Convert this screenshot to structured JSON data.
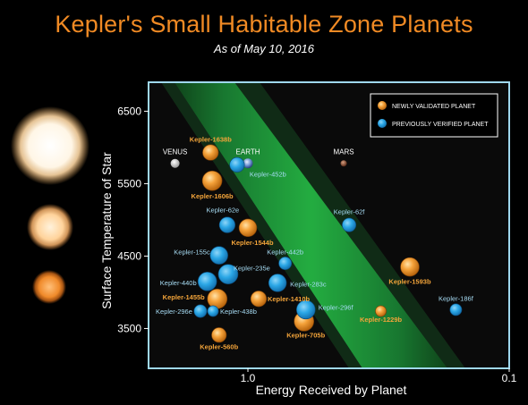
{
  "header": {
    "title": "Kepler's Small Habitable Zone Planets",
    "subtitle": "As of May 10, 2016"
  },
  "colors": {
    "newly_validated": "#f39a2c",
    "previously_verified": "#2ba7e6",
    "habitable_zone": "#1f9e3a",
    "frame": "#9fd8ee"
  },
  "chart_data": {
    "type": "scatter",
    "xlabel": "Energy Received by Planet",
    "ylabel": "Surface Temperature of Star",
    "x_scale": "log-reversed",
    "xlim": [
      2.4,
      0.1
    ],
    "ylim": [
      2950,
      6900
    ],
    "x_ticks": [
      {
        "value": 1.0,
        "label": "1.0"
      },
      {
        "value": 0.1,
        "label": "0.1"
      }
    ],
    "y_ticks": [
      3500,
      4500,
      5500,
      6500
    ],
    "grid": false,
    "legend": {
      "placement": "top-right",
      "entries": [
        {
          "key": "new",
          "label": "NEWLY VALIDATED PLANET"
        },
        {
          "key": "old",
          "label": "PREVIOUSLY VERIFIED PLANET"
        }
      ]
    },
    "solar_system": [
      {
        "name": "VENUS",
        "x": 1.9,
        "y": 5780
      },
      {
        "name": "EARTH",
        "x": 1.0,
        "y": 5780
      },
      {
        "name": "MARS",
        "x": 0.43,
        "y": 5780
      }
    ],
    "planets": [
      {
        "name": "Kepler-1638b",
        "status": "new",
        "x": 1.39,
        "y": 5930,
        "size": 1.6
      },
      {
        "name": "Kepler-452b",
        "status": "old",
        "x": 1.1,
        "y": 5760,
        "size": 1.5
      },
      {
        "name": "Kepler-1606b",
        "status": "new",
        "x": 1.37,
        "y": 5540,
        "size": 2.0
      },
      {
        "name": "Kepler-62e",
        "status": "old",
        "x": 1.2,
        "y": 4930,
        "size": 1.6
      },
      {
        "name": "Kepler-1544b",
        "status": "new",
        "x": 1.0,
        "y": 4890,
        "size": 1.8
      },
      {
        "name": "Kepler-62f",
        "status": "old",
        "x": 0.41,
        "y": 4930,
        "size": 1.4
      },
      {
        "name": "Kepler-155c",
        "status": "old",
        "x": 1.29,
        "y": 4510,
        "size": 1.8
      },
      {
        "name": "Kepler-442b",
        "status": "old",
        "x": 0.72,
        "y": 4400,
        "size": 1.3
      },
      {
        "name": "Kepler-1593b",
        "status": "new",
        "x": 0.24,
        "y": 4350,
        "size": 1.9
      },
      {
        "name": "Kepler-235e",
        "status": "old",
        "x": 1.19,
        "y": 4250,
        "size": 2.0
      },
      {
        "name": "Kepler-440b",
        "status": "old",
        "x": 1.43,
        "y": 4150,
        "size": 1.9
      },
      {
        "name": "Kepler-283c",
        "status": "old",
        "x": 0.77,
        "y": 4130,
        "size": 1.8
      },
      {
        "name": "Kepler-1455b",
        "status": "new",
        "x": 1.31,
        "y": 3910,
        "size": 2.0
      },
      {
        "name": "Kepler-1410b",
        "status": "new",
        "x": 0.91,
        "y": 3910,
        "size": 1.6
      },
      {
        "name": "Kepler-296f",
        "status": "old",
        "x": 0.6,
        "y": 3760,
        "size": 1.9
      },
      {
        "name": "Kepler-186f",
        "status": "old",
        "x": 0.16,
        "y": 3760,
        "size": 1.2
      },
      {
        "name": "Kepler-296e",
        "status": "old",
        "x": 1.52,
        "y": 3740,
        "size": 1.3
      },
      {
        "name": "Kepler-438b",
        "status": "old",
        "x": 1.36,
        "y": 3740,
        "size": 1.1
      },
      {
        "name": "Kepler-1229b",
        "status": "new",
        "x": 0.31,
        "y": 3740,
        "size": 1.1
      },
      {
        "name": "Kepler-705b",
        "status": "new",
        "x": 0.61,
        "y": 3600,
        "size": 2.0
      },
      {
        "name": "Kepler-560b",
        "status": "new",
        "x": 1.29,
        "y": 3410,
        "size": 1.5
      }
    ]
  }
}
